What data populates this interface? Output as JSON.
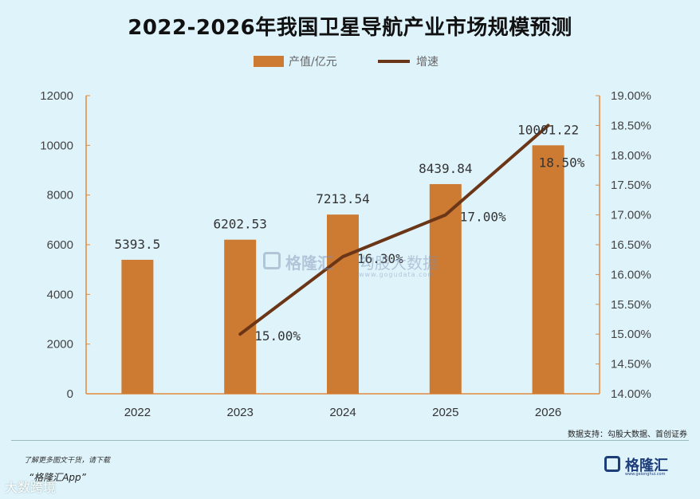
{
  "title": "2022-2026年我国卫星导航产业市场规模预测",
  "source": "数据支持：勾股大数据、首创证券",
  "footer": {
    "note": "了解更多图文干货，请下载",
    "app": "“格隆汇App”",
    "watermark_bottom": "大数跨境",
    "logo_name": "格隆汇",
    "logo_url": "www.gelonghui.com"
  },
  "watermark": {
    "name": "格隆汇",
    "name2": "勾股大数据",
    "url": "www.gogudata.com"
  },
  "colors": {
    "bar": "#cd7a33",
    "line": "#6b3617",
    "axis": "#e08a3c"
  },
  "chart_data": {
    "type": "bar",
    "categories": [
      "2022",
      "2023",
      "2024",
      "2025",
      "2026"
    ],
    "series": [
      {
        "name": "产值/亿元",
        "type": "bar",
        "axis": "left",
        "values": [
          5393.5,
          6202.53,
          7213.54,
          8439.84,
          10001.22
        ],
        "labels": [
          "5393.5",
          "6202.53",
          "7213.54",
          "8439.84",
          "10001.22"
        ]
      },
      {
        "name": "增速",
        "type": "line",
        "axis": "right",
        "values": [
          null,
          15.0,
          16.3,
          17.0,
          18.5
        ],
        "labels": [
          "",
          "15.00%",
          "16.30%",
          "17.00%",
          "18.50%"
        ]
      }
    ],
    "y_left": {
      "min": 0,
      "max": 12000,
      "ticks": [
        "0",
        "2000",
        "4000",
        "6000",
        "8000",
        "10000",
        "12000"
      ]
    },
    "y_right": {
      "min": 14,
      "max": 19,
      "ticks": [
        "14.00%",
        "14.50%",
        "15.00%",
        "15.50%",
        "16.00%",
        "16.50%",
        "17.00%",
        "17.50%",
        "18.00%",
        "18.50%",
        "19.00%"
      ]
    },
    "legend_position": "top-center",
    "grid": false
  }
}
